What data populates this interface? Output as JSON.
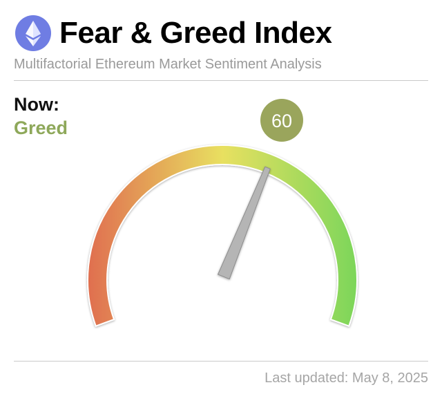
{
  "header": {
    "title": "Fear & Greed Index",
    "subtitle": "Multifactorial Ethereum Market Sentiment Analysis",
    "logo_icon": "ethereum-icon"
  },
  "current": {
    "label": "Now:",
    "sentiment": "Greed",
    "value": "60",
    "value_numeric": 60,
    "sentiment_color": "#8ea85a",
    "badge_color": "#9aa55c"
  },
  "gauge": {
    "min": 0,
    "max": 100,
    "color_low": "#e07050",
    "color_mid": "#e8e060",
    "color_high": "#7dd65a",
    "needle_color": "#b5b5b5"
  },
  "footer": {
    "last_updated": "Last updated: May 8, 2025"
  }
}
